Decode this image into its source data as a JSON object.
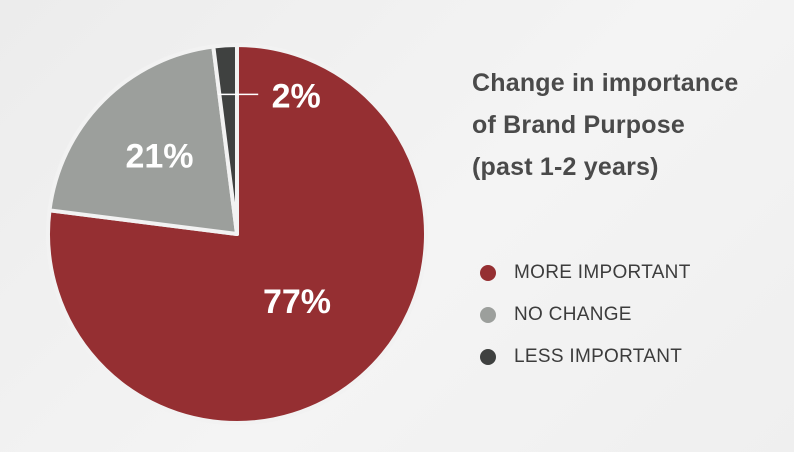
{
  "chart_data": {
    "type": "pie",
    "title_lines": [
      "Change in importance",
      "of Brand Purpose",
      "(past 1-2 years)"
    ],
    "categories": [
      "MORE IMPORTANT",
      "NO CHANGE",
      "LESS IMPORTANT"
    ],
    "values": [
      77,
      21,
      2
    ],
    "data_labels": [
      "77%",
      "21%",
      "2%"
    ],
    "colors": [
      "#952f32",
      "#9c9f9c",
      "#3f4140"
    ],
    "legend_position": "right",
    "start": "12 o'clock",
    "direction": "clockwise"
  }
}
